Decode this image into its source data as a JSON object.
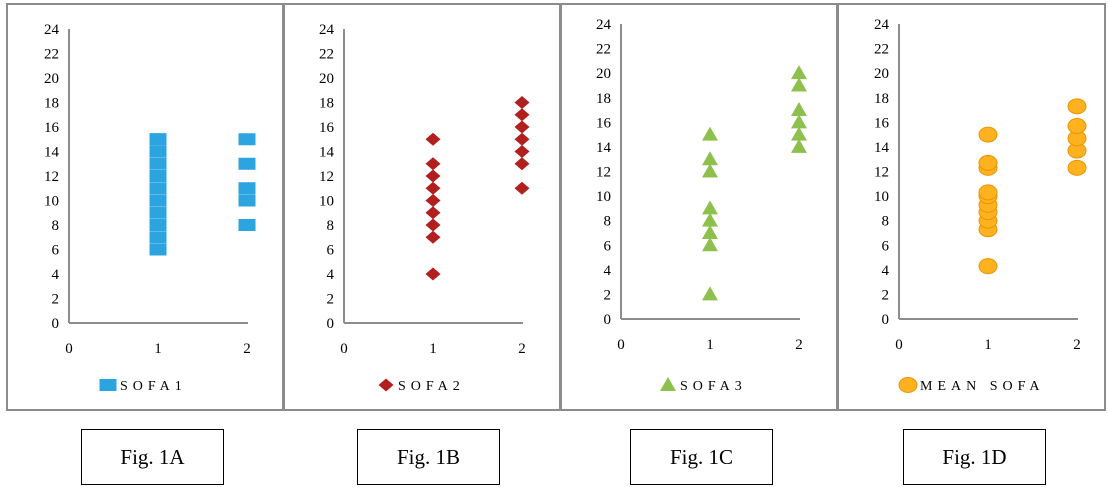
{
  "chart_data": [
    {
      "type": "scatter",
      "xlim": [
        0,
        2
      ],
      "ylim": [
        0,
        24
      ],
      "x_ticks": [
        "0",
        "1",
        "2"
      ],
      "y_ticks": [
        "0",
        "2",
        "4",
        "6",
        "8",
        "10",
        "12",
        "14",
        "16",
        "18",
        "20",
        "22",
        "24"
      ],
      "legend": "SOFA1",
      "legend_placement": "bottom",
      "grid": false,
      "marker": "square",
      "color": "#2ba4df",
      "series": [
        {
          "name": "SOFA1",
          "x": [
            1,
            1,
            1,
            1,
            1,
            1,
            1,
            1,
            1,
            1,
            1,
            2,
            2,
            2,
            2,
            2
          ],
          "y": [
            6,
            7,
            8,
            9,
            10,
            11,
            12,
            13,
            14,
            15,
            15,
            8,
            10,
            11,
            13,
            15
          ]
        }
      ]
    },
    {
      "type": "scatter",
      "xlim": [
        0,
        2
      ],
      "ylim": [
        0,
        24
      ],
      "x_ticks": [
        "0",
        "1",
        "2"
      ],
      "y_ticks": [
        "0",
        "2",
        "4",
        "6",
        "8",
        "10",
        "12",
        "14",
        "16",
        "18",
        "20",
        "22",
        "24"
      ],
      "legend": "SOFA2",
      "legend_placement": "bottom",
      "grid": false,
      "marker": "diamond",
      "color": "#b11f1f",
      "series": [
        {
          "name": "SOFA2",
          "x": [
            1,
            1,
            1,
            1,
            1,
            1,
            1,
            1,
            1,
            2,
            2,
            2,
            2,
            2,
            2,
            2
          ],
          "y": [
            4,
            7,
            8,
            9,
            10,
            11,
            12,
            13,
            15,
            11,
            13,
            14,
            15,
            16,
            17,
            18
          ]
        }
      ]
    },
    {
      "type": "scatter",
      "xlim": [
        0,
        2
      ],
      "ylim": [
        0,
        24
      ],
      "x_ticks": [
        "0",
        "1",
        "2"
      ],
      "y_ticks": [
        "0",
        "2",
        "4",
        "6",
        "8",
        "10",
        "12",
        "14",
        "16",
        "18",
        "20",
        "22",
        "24"
      ],
      "legend": "SOFA3",
      "legend_placement": "bottom",
      "grid": false,
      "marker": "triangle",
      "color": "#8dc04c",
      "series": [
        {
          "name": "SOFA3",
          "x": [
            1,
            1,
            1,
            1,
            1,
            1,
            1,
            1,
            2,
            2,
            2,
            2,
            2,
            2
          ],
          "y": [
            2,
            6,
            7,
            8,
            9,
            12,
            13,
            15,
            14,
            15,
            16,
            17,
            19,
            20
          ]
        }
      ]
    },
    {
      "type": "scatter",
      "xlim": [
        0,
        2
      ],
      "ylim": [
        0,
        24
      ],
      "x_ticks": [
        "0",
        "1",
        "2"
      ],
      "y_ticks": [
        "0",
        "2",
        "4",
        "6",
        "8",
        "10",
        "12",
        "14",
        "16",
        "18",
        "20",
        "22",
        "24"
      ],
      "legend": "MEAN SOFA",
      "legend_placement": "bottom",
      "grid": false,
      "marker": "circle",
      "color": "#ffb21f",
      "series": [
        {
          "name": "MEAN SOFA",
          "x": [
            1,
            1,
            1,
            1,
            1,
            1,
            1,
            1,
            1,
            1,
            2,
            2,
            2,
            2,
            2
          ],
          "y": [
            4.3,
            7.3,
            8,
            8.7,
            9.3,
            10,
            10.3,
            12.3,
            12.7,
            15,
            12.3,
            13.7,
            14.7,
            15.7,
            17.3
          ]
        }
      ]
    }
  ],
  "captions": [
    "Fig. 1A",
    "Fig. 1B",
    "Fig. 1C",
    "Fig. 1D"
  ]
}
